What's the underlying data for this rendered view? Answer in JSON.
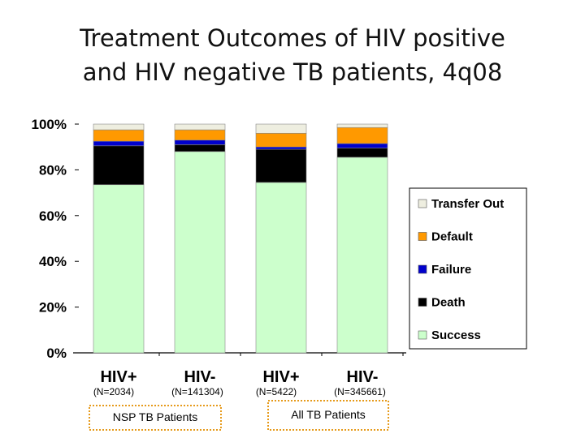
{
  "title": {
    "line1": "Treatment Outcomes of HIV positive",
    "line2": "and HIV negative TB patients, 4q08"
  },
  "chart_data": {
    "type": "bar",
    "stacked": true,
    "percent": true,
    "categories": [
      "HIV+",
      "HIV-",
      "HIV+",
      "HIV-"
    ],
    "category_notes": [
      "(N=2034)",
      "(N=141304)",
      "(N=5422)",
      "(N=345661)"
    ],
    "groups": [
      {
        "label": "NSP TB Patients",
        "categories": [
          0,
          1
        ]
      },
      {
        "label": "All TB Patients",
        "categories": [
          2,
          3
        ]
      }
    ],
    "series": [
      {
        "name": "Success",
        "color": "#ccffcc",
        "values": [
          73.5,
          88,
          74.5,
          85.5
        ]
      },
      {
        "name": "Death",
        "color": "#000000",
        "values": [
          17,
          3,
          14.5,
          4
        ]
      },
      {
        "name": "Failure",
        "color": "#0000cc",
        "values": [
          2,
          2,
          1,
          2
        ]
      },
      {
        "name": "Default",
        "color": "#ff9900",
        "values": [
          5,
          4.5,
          6,
          7
        ]
      },
      {
        "name": "Transfer Out",
        "color": "#eeeee0",
        "values": [
          2.5,
          2.5,
          4,
          1.5
        ]
      }
    ],
    "yticks": [
      "0%",
      "20%",
      "40%",
      "60%",
      "80%",
      "100%"
    ],
    "ylim": [
      0,
      100
    ],
    "legend": "right",
    "grid": false
  }
}
